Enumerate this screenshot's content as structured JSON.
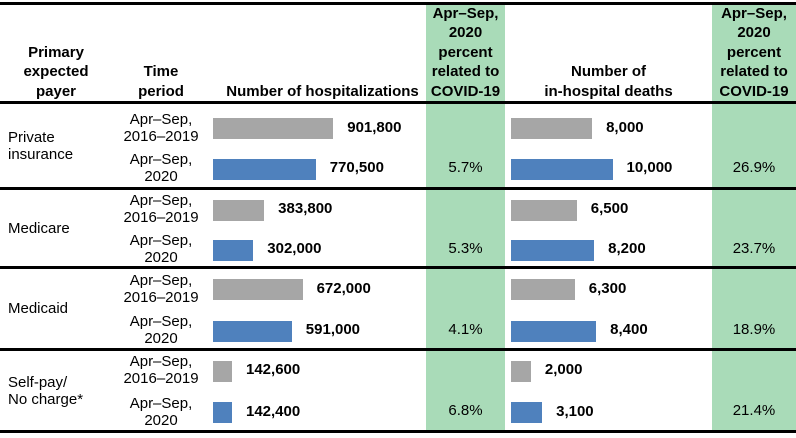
{
  "colors": {
    "background": "#FFFFFF",
    "rule": "#000000",
    "text": "#000000",
    "bar_prior_gray": "#A6A6A6",
    "bar_2020_blue": "#4F81BD",
    "covid_column_green": "#A9DBB8"
  },
  "headers": {
    "payer": [
      "Primary",
      "expected",
      "payer"
    ],
    "time_period": [
      "Time",
      "period"
    ],
    "hospitalizations": [
      "Number of hospitalizations"
    ],
    "covid_pct_hospitalizations": [
      "Apr–Sep,",
      "2020",
      "percent",
      "related to",
      "COVID-19"
    ],
    "deaths": [
      "Number of",
      "in-hospital deaths"
    ],
    "covid_pct_deaths": [
      "Apr–Sep,",
      "2020",
      "percent",
      "related to",
      "COVID-19"
    ]
  },
  "chart_data": {
    "type": "bar",
    "orientation": "horizontal",
    "grid": false,
    "series": [
      {
        "name": "Apr–Sep, 2016–2019",
        "color": "#A6A6A6"
      },
      {
        "name": "Apr–Sep, 2020",
        "color": "#4F81BD"
      }
    ],
    "measures": [
      "Number of hospitalizations",
      "Number of in-hospital deaths"
    ],
    "groups": [
      {
        "payer": "Private insurance",
        "payer_lines": [
          "Private",
          "insurance"
        ],
        "rows": [
          {
            "period_lines": [
              "Apr–Sep,",
              "2016–2019"
            ],
            "series": "Apr–Sep, 2016–2019",
            "hospitalizations": 901800,
            "hospitalizations_label": "901,800",
            "deaths": 8000,
            "deaths_label": "8,000"
          },
          {
            "period_lines": [
              "Apr–Sep,",
              "2020"
            ],
            "series": "Apr–Sep, 2020",
            "hospitalizations": 770500,
            "hospitalizations_label": "770,500",
            "deaths": 10000,
            "deaths_label": "10,000",
            "pct_covid_hospitalizations": "5.7%",
            "pct_covid_deaths": "26.9%"
          }
        ]
      },
      {
        "payer": "Medicare",
        "payer_lines": [
          "Medicare"
        ],
        "rows": [
          {
            "period_lines": [
              "Apr–Sep,",
              "2016–2019"
            ],
            "series": "Apr–Sep, 2016–2019",
            "hospitalizations": 383800,
            "hospitalizations_label": "383,800",
            "deaths": 6500,
            "deaths_label": "6,500"
          },
          {
            "period_lines": [
              "Apr–Sep,",
              "2020"
            ],
            "series": "Apr–Sep, 2020",
            "hospitalizations": 302000,
            "hospitalizations_label": "302,000",
            "deaths": 8200,
            "deaths_label": "8,200",
            "pct_covid_hospitalizations": "5.3%",
            "pct_covid_deaths": "23.7%"
          }
        ]
      },
      {
        "payer": "Medicaid",
        "payer_lines": [
          "Medicaid"
        ],
        "rows": [
          {
            "period_lines": [
              "Apr–Sep,",
              "2016–2019"
            ],
            "series": "Apr–Sep, 2016–2019",
            "hospitalizations": 672000,
            "hospitalizations_label": "672,000",
            "deaths": 6300,
            "deaths_label": "6,300"
          },
          {
            "period_lines": [
              "Apr–Sep,",
              "2020"
            ],
            "series": "Apr–Sep, 2020",
            "hospitalizations": 591000,
            "hospitalizations_label": "591,000",
            "deaths": 8400,
            "deaths_label": "8,400",
            "pct_covid_hospitalizations": "4.1%",
            "pct_covid_deaths": "18.9%"
          }
        ]
      },
      {
        "payer": "Self-pay/ No charge*",
        "payer_lines": [
          "Self-pay/",
          "No charge*"
        ],
        "rows": [
          {
            "period_lines": [
              "Apr–Sep,",
              "2016–2019"
            ],
            "series": "Apr–Sep, 2016–2019",
            "hospitalizations": 142600,
            "hospitalizations_label": "142,600",
            "deaths": 2000,
            "deaths_label": "2,000"
          },
          {
            "period_lines": [
              "Apr–Sep,",
              "2020"
            ],
            "series": "Apr–Sep, 2020",
            "hospitalizations": 142400,
            "hospitalizations_label": "142,400",
            "deaths": 3100,
            "deaths_label": "3,100",
            "pct_covid_hospitalizations": "6.8%",
            "pct_covid_deaths": "21.4%"
          }
        ]
      }
    ]
  }
}
